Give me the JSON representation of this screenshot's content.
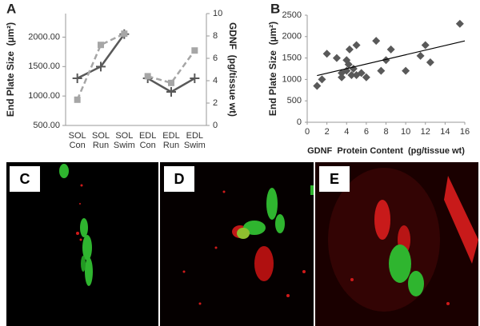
{
  "chart_data": [
    {
      "type": "line",
      "label": "A",
      "categories": [
        "SOL Con",
        "SOL Run",
        "SOL Swim",
        "EDL Con",
        "EDL Run",
        "EDL Swim"
      ],
      "ylabel": "End Plate Size  (µm²)",
      "y2label": "GDNF  (pg/tissue wt)",
      "ylim": [
        500,
        2400
      ],
      "yticks": [
        {
          "value": 500,
          "label": "500.00"
        },
        {
          "value": 1000,
          "label": "1000.00"
        },
        {
          "value": 1500,
          "label": "1500.00"
        },
        {
          "value": 2000,
          "label": "2000.00"
        }
      ],
      "y2lim": [
        0,
        10
      ],
      "y2ticks": [
        0,
        2,
        4,
        6,
        8,
        10
      ],
      "series": [
        {
          "color": "#595959",
          "marker": "plus",
          "dashed": false,
          "values": [
            1300,
            1500,
            2050,
            null,
            null,
            null
          ]
        },
        {
          "color": "#595959",
          "marker": "plus",
          "dashed": false,
          "values": [
            null,
            null,
            null,
            1300,
            1070,
            1300
          ]
        },
        {
          "color": "#a6a6a6",
          "marker": "square",
          "dashed": true,
          "axis": "y2",
          "values": [
            2.3,
            7.2,
            8.2,
            null,
            null,
            null
          ]
        },
        {
          "color": "#a6a6a6",
          "marker": "square",
          "dashed": true,
          "axis": "y2",
          "values": [
            null,
            null,
            null,
            4.4,
            3.8,
            6.7
          ]
        }
      ]
    },
    {
      "type": "scatter",
      "label": "B",
      "xlabel": "GDNF  Protein Content  (pg/tissue wt)",
      "ylabel": "End Plate Size  (µm²)",
      "xlim": [
        0,
        16
      ],
      "xticks": [
        0,
        2,
        4,
        6,
        8,
        10,
        12,
        14,
        16
      ],
      "ylim": [
        0,
        2500
      ],
      "yticks": [
        0,
        500,
        1000,
        1500,
        2000,
        2500
      ],
      "x": [
        1,
        1.5,
        2,
        3,
        3.5,
        3.5,
        4,
        4,
        4.2,
        4.3,
        4.5,
        4.7,
        5,
        5,
        5.5,
        6,
        7,
        7.5,
        8,
        8.5,
        10,
        11.5,
        12,
        12.5,
        15.5
      ],
      "values": [
        850,
        1000,
        1600,
        1500,
        1150,
        1050,
        1450,
        1200,
        1350,
        1700,
        1100,
        1250,
        1800,
        1100,
        1150,
        1050,
        1900,
        1200,
        1450,
        1700,
        1200,
        1550,
        1800,
        1400,
        2300
      ],
      "color": "#595959",
      "marker": "diamond",
      "trendline": {
        "x": [
          1,
          16
        ],
        "values": [
          1090,
          1900
        ],
        "color": "#000000"
      }
    }
  ],
  "images": [
    {
      "label": "C"
    },
    {
      "label": "D"
    },
    {
      "label": "E"
    }
  ]
}
